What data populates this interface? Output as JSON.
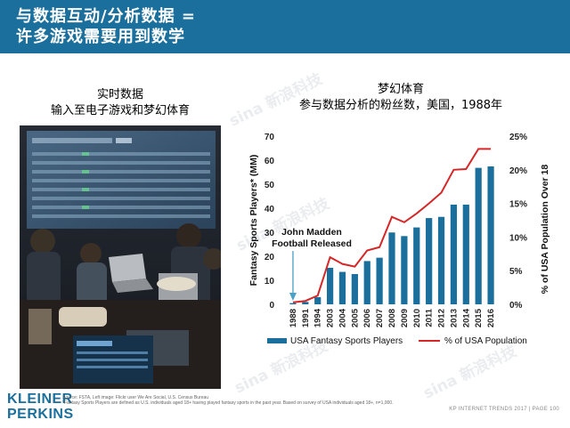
{
  "header": {
    "title": "与数据互动/分析数据 =\n许多游戏需要用到数学"
  },
  "left_panel": {
    "caption": "实时数据\n输入至电子游戏和梦幻体育"
  },
  "right_panel": {
    "title": "梦幻体育\n参与数据分析的粉丝数，美国，1988年"
  },
  "colors": {
    "header_bg": "#1b6f9c",
    "bar": "#1b6f9c",
    "line": "#d62728"
  },
  "chart_data": {
    "type": "bar",
    "categories": [
      "1988",
      "1991",
      "1994",
      "2003",
      "2004",
      "2005",
      "2006",
      "2007",
      "2008",
      "2009",
      "2010",
      "2011",
      "2012",
      "2013",
      "2014",
      "2015",
      "2016"
    ],
    "series": [
      {
        "name": "USA Fantasy Sports Players",
        "type": "bar",
        "axis": "left",
        "values": [
          0.5,
          1,
          3,
          15.2,
          13.5,
          12.6,
          18,
          19.4,
          29.9,
          28.4,
          32,
          35.9,
          36.4,
          41.5,
          41.5,
          56.8,
          57.4
        ]
      },
      {
        "name": "% of USA Population",
        "type": "line",
        "axis": "right",
        "values": [
          0.3,
          0.5,
          1.3,
          7.0,
          6.0,
          5.6,
          8.0,
          8.5,
          13.0,
          12.2,
          13.5,
          15.0,
          16.6,
          20.0,
          20.1,
          23.1,
          23.1
        ]
      }
    ],
    "ylabel": "Fantasy Sports Players* (MM)",
    "ylabel_right": "% of USA Population Over 18",
    "ylim": [
      0,
      70
    ],
    "y_ticks": [
      "0",
      "10",
      "20",
      "30",
      "40",
      "50",
      "60",
      "70"
    ],
    "ylim_right": [
      0,
      25
    ],
    "y_ticks_right": [
      "0%",
      "5%",
      "10%",
      "15%",
      "20%",
      "25%"
    ],
    "annotation": {
      "text": "John Madden\nFootball Released",
      "category": "1988"
    },
    "legend": {
      "position": "bottom"
    },
    "grid": false
  },
  "footer": {
    "logo": "KLEINER\nPERKINS",
    "note": "Source: FSTA, Left image: Flickr user We Are Social, U.S. Census Bureau\n*Fantasy Sports Players are defined as U.S. individuals aged 18+ having played fantasy sports in the past year. Based on survey of USA individuals aged 18+, n=1,000.",
    "right": "KP INTERNET TRENDS 2017  |  PAGE 100"
  }
}
